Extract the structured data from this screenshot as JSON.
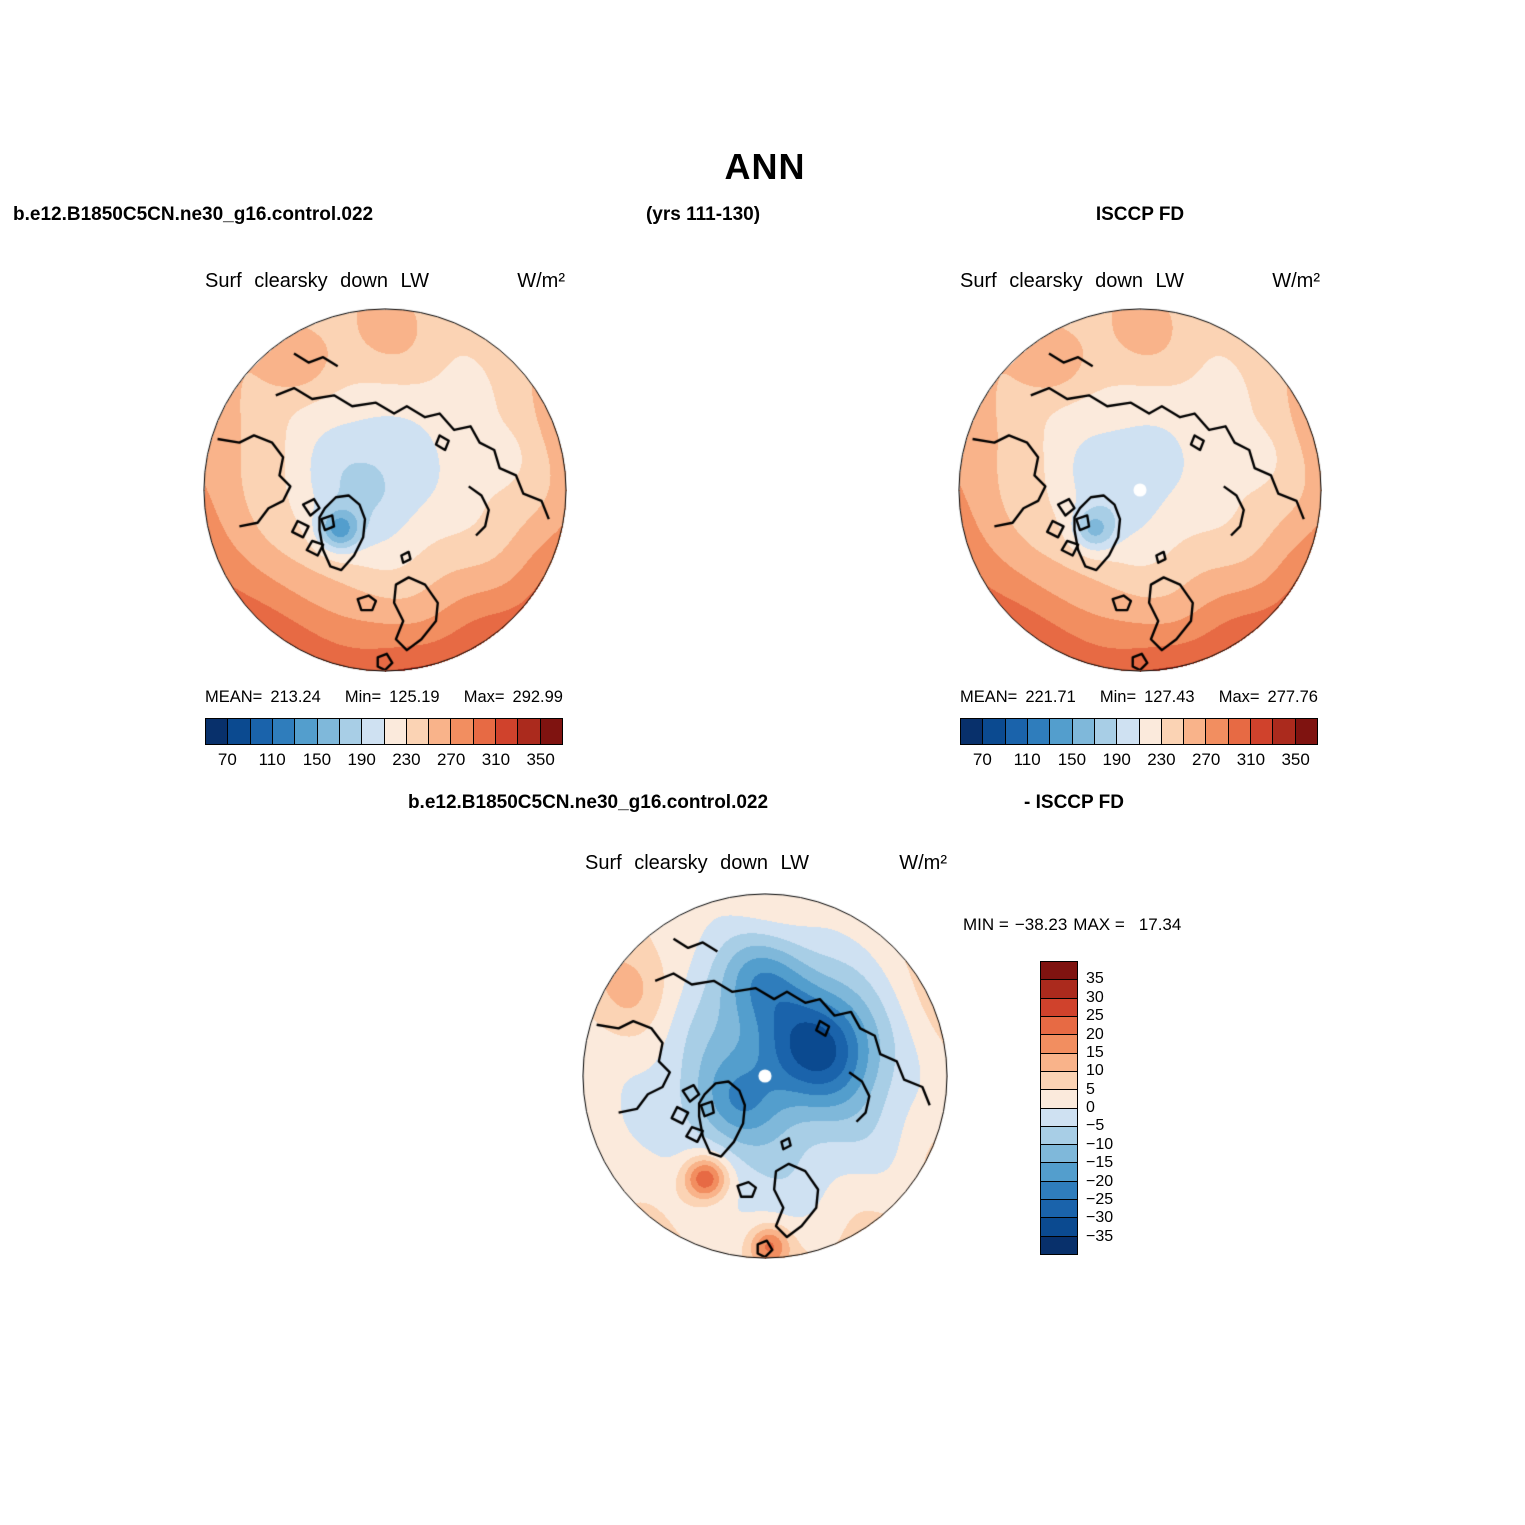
{
  "title": "ANN",
  "header": {
    "model_run": "b.e12.B1850C5CN.ne30_g16.control.022",
    "years": "(yrs 111-130)",
    "obs_name": "ISCCP FD"
  },
  "diff_header": {
    "model_run": "b.e12.B1850C5CN.ne30_g16.control.022",
    "obs_name": "- ISCCP FD"
  },
  "panels": {
    "model": {
      "title": "Surf clearsky down LW",
      "units": "W/m²",
      "stats": {
        "mean_label": "MEAN=",
        "mean": "213.24",
        "min_label": "Min=",
        "min": "125.19",
        "max_label": "Max=",
        "max": "292.99"
      }
    },
    "obs": {
      "title": "Surf clearsky down LW",
      "units": "W/m²",
      "stats": {
        "mean_label": "MEAN=",
        "mean": "221.71",
        "min_label": "Min=",
        "min": "127.43",
        "max_label": "Max=",
        "max": "277.76"
      }
    },
    "diff": {
      "title": "Surf clearsky down LW",
      "units": "W/m²",
      "stats": {
        "min_label": "MIN =",
        "min": "−38.23",
        "max_label": "MAX =",
        "max": "17.34"
      }
    }
  },
  "chart_data": [
    {
      "type": "heatmap",
      "projection": "north-polar-stereographic",
      "season": "ANN",
      "dataset": "b.e12.B1850C5CN.ne30_g16.control.022",
      "period": "yrs 111-130",
      "variable": "Surf clearsky down LW",
      "units": "W/m²",
      "stats": {
        "mean": 213.24,
        "min": 125.19,
        "max": 292.99
      },
      "contour_levels": [
        70,
        90,
        110,
        130,
        150,
        170,
        190,
        210,
        230,
        250,
        270,
        290,
        310,
        330,
        350
      ],
      "colorbar_ticks": [
        "70",
        "110",
        "150",
        "190",
        "230",
        "270",
        "310",
        "350"
      ],
      "colors": [
        "#08306b",
        "#0b4a90",
        "#1a63ab",
        "#2f7dbc",
        "#539ecd",
        "#7fb8da",
        "#a8cee6",
        "#cfe1f2",
        "#fbeadc",
        "#fbd3b4",
        "#f9b38a",
        "#f28e60",
        "#e76a44",
        "#d0422c",
        "#ab2a1d",
        "#7f1310"
      ]
    },
    {
      "type": "heatmap",
      "projection": "north-polar-stereographic",
      "season": "ANN",
      "dataset": "ISCCP FD",
      "variable": "Surf clearsky down LW",
      "units": "W/m²",
      "stats": {
        "mean": 221.71,
        "min": 127.43,
        "max": 277.76
      },
      "contour_levels": [
        70,
        90,
        110,
        130,
        150,
        170,
        190,
        210,
        230,
        250,
        270,
        290,
        310,
        330,
        350
      ],
      "colorbar_ticks": [
        "70",
        "110",
        "150",
        "190",
        "230",
        "270",
        "310",
        "350"
      ],
      "colors": [
        "#08306b",
        "#0b4a90",
        "#1a63ab",
        "#2f7dbc",
        "#539ecd",
        "#7fb8da",
        "#a8cee6",
        "#cfe1f2",
        "#fbeadc",
        "#fbd3b4",
        "#f9b38a",
        "#f28e60",
        "#e76a44",
        "#d0422c",
        "#ab2a1d",
        "#7f1310"
      ]
    },
    {
      "type": "heatmap",
      "projection": "north-polar-stereographic",
      "season": "ANN",
      "dataset": "b.e12.B1850C5CN.ne30_g16.control.022 - ISCCP FD",
      "variable": "Surf clearsky down LW",
      "units": "W/m²",
      "stats": {
        "min": -38.23,
        "max": 17.34
      },
      "contour_levels": [
        -35,
        -30,
        -25,
        -20,
        -15,
        -10,
        -5,
        0,
        5,
        10,
        15,
        20,
        25,
        30,
        35
      ],
      "colorbar_labels": [
        "35",
        "30",
        "25",
        "20",
        "15",
        "10",
        "5",
        "0",
        "−5",
        "−10",
        "−15",
        "−20",
        "−25",
        "−30",
        "−35"
      ],
      "colors": [
        "#08306b",
        "#0b4a90",
        "#1a63ab",
        "#2f7dbc",
        "#539ecd",
        "#7fb8da",
        "#a8cee6",
        "#cfe1f2",
        "#fbeadc",
        "#fbd3b4",
        "#f9b38a",
        "#f28e60",
        "#e76a44",
        "#d0422c",
        "#ab2a1d",
        "#7f1310"
      ]
    }
  ]
}
